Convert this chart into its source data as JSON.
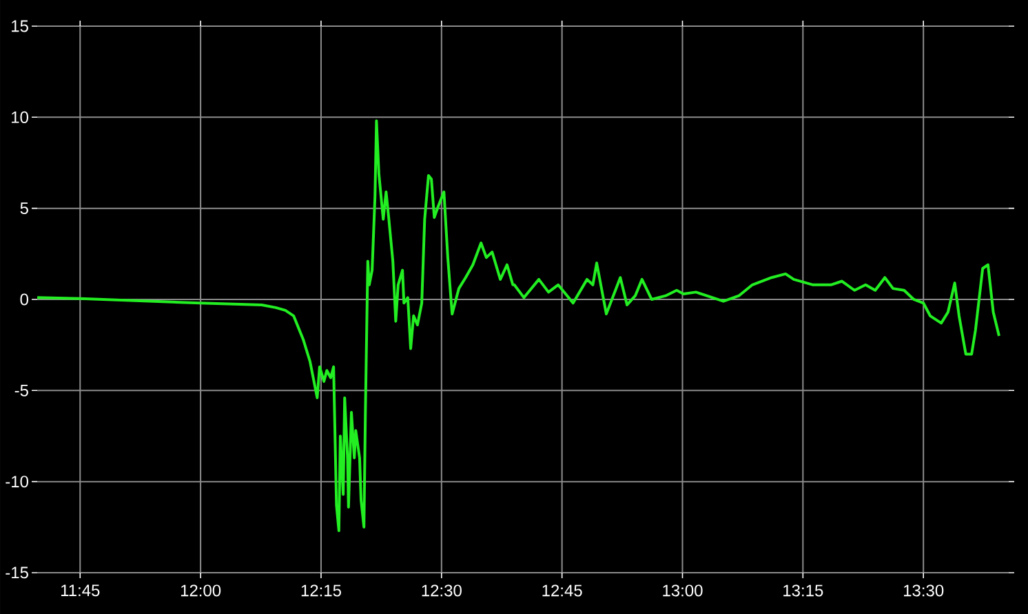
{
  "chart_data": {
    "type": "line",
    "xlim": [
      11.661,
      13.677
    ],
    "ylim": [
      -15,
      15
    ],
    "xticks": [
      {
        "value": 11.75,
        "label": "11:45"
      },
      {
        "value": 12.0,
        "label": "12:00"
      },
      {
        "value": 12.25,
        "label": "12:15"
      },
      {
        "value": 12.5,
        "label": "12:30"
      },
      {
        "value": 12.75,
        "label": "12:45"
      },
      {
        "value": 13.0,
        "label": "13:00"
      },
      {
        "value": 13.25,
        "label": "13:15"
      },
      {
        "value": 13.5,
        "label": "13:30"
      }
    ],
    "yticks": [
      -15,
      -10,
      -5,
      0,
      5,
      10,
      15
    ],
    "grid": true,
    "series": [
      {
        "color": "#22ee22",
        "x": [
          11.661,
          11.75,
          11.999,
          12.127,
          12.156,
          12.176,
          12.193,
          12.213,
          12.227,
          12.242,
          12.247,
          12.256,
          12.262,
          12.27,
          12.276,
          12.282,
          12.287,
          12.29,
          12.296,
          12.299,
          12.305,
          12.307,
          12.313,
          12.319,
          12.322,
          12.33,
          12.333,
          12.339,
          12.342,
          12.347,
          12.35,
          12.356,
          12.362,
          12.365,
          12.37,
          12.379,
          12.385,
          12.39,
          12.399,
          12.405,
          12.41,
          12.419,
          12.422,
          12.43,
          12.436,
          12.442,
          12.45,
          12.459,
          12.465,
          12.473,
          12.479,
          12.485,
          12.493,
          12.505,
          12.513,
          12.522,
          12.536,
          12.55,
          12.565,
          12.582,
          12.593,
          12.605,
          12.622,
          12.636,
          12.648,
          12.651,
          12.671,
          12.702,
          12.722,
          12.742,
          12.773,
          12.802,
          12.814,
          12.822,
          12.842,
          12.871,
          12.885,
          12.902,
          12.916,
          12.936,
          12.965,
          12.988,
          13.002,
          13.028,
          13.085,
          13.117,
          13.145,
          13.185,
          13.214,
          13.231,
          13.271,
          13.308,
          13.331,
          13.357,
          13.38,
          13.4,
          13.42,
          13.437,
          13.46,
          13.48,
          13.5,
          13.514,
          13.537,
          13.551,
          13.565,
          13.574,
          13.588,
          13.6,
          13.608,
          13.623,
          13.634,
          13.645,
          13.657
        ],
        "values": [
          0.1,
          0.05,
          -0.2,
          -0.3,
          -0.45,
          -0.6,
          -0.9,
          -2.2,
          -3.4,
          -5.4,
          -3.7,
          -4.5,
          -3.9,
          -4.3,
          -3.7,
          -11.3,
          -12.7,
          -7.5,
          -10.7,
          -5.4,
          -8.7,
          -11.4,
          -6.2,
          -8.7,
          -7.2,
          -8.7,
          -11.0,
          -12.5,
          -6.2,
          2.1,
          0.8,
          1.6,
          5.7,
          9.8,
          6.9,
          4.4,
          5.9,
          4.6,
          2.1,
          -1.2,
          0.8,
          1.6,
          -0.2,
          0.1,
          -2.7,
          -0.9,
          -1.4,
          -0.2,
          4.4,
          6.8,
          6.6,
          4.5,
          5.1,
          5.9,
          2.3,
          -0.8,
          0.6,
          1.2,
          1.9,
          3.1,
          2.3,
          2.6,
          1.1,
          1.9,
          0.8,
          0.8,
          0.1,
          1.1,
          0.4,
          0.8,
          -0.2,
          1.1,
          0.8,
          2.0,
          -0.8,
          1.2,
          -0.3,
          0.2,
          1.1,
          0.0,
          0.2,
          0.5,
          0.3,
          0.4,
          -0.1,
          0.2,
          0.8,
          1.2,
          1.4,
          1.1,
          0.8,
          0.8,
          1.0,
          0.5,
          0.8,
          0.5,
          1.2,
          0.6,
          0.5,
          0.0,
          -0.2,
          -0.9,
          -1.3,
          -0.7,
          0.9,
          -0.9,
          -3.0,
          -3.0,
          -1.7,
          1.7,
          1.9,
          -0.7,
          -2.0
        ]
      }
    ]
  }
}
